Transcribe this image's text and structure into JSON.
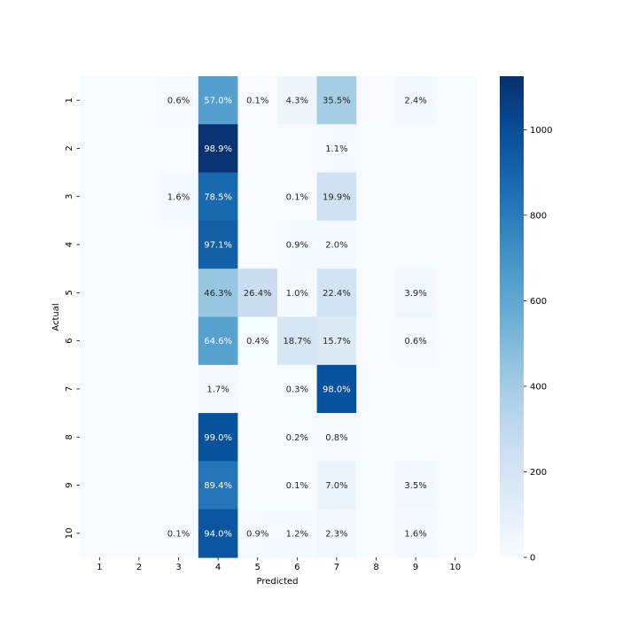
{
  "chart_data": {
    "type": "heatmap",
    "title": "",
    "xlabel": "Predicted",
    "ylabel": "Actual",
    "x_categories": [
      "1",
      "2",
      "3",
      "4",
      "5",
      "6",
      "7",
      "8",
      "9",
      "10"
    ],
    "y_categories": [
      "1",
      "2",
      "3",
      "4",
      "5",
      "6",
      "7",
      "8",
      "9",
      "10"
    ],
    "cells": [
      {
        "row": "1",
        "col": "3",
        "label": "0.6%",
        "value": 7
      },
      {
        "row": "1",
        "col": "4",
        "label": "57.0%",
        "value": 640
      },
      {
        "row": "1",
        "col": "5",
        "label": "0.1%",
        "value": 1
      },
      {
        "row": "1",
        "col": "6",
        "label": "4.3%",
        "value": 48
      },
      {
        "row": "1",
        "col": "7",
        "label": "35.5%",
        "value": 399
      },
      {
        "row": "1",
        "col": "9",
        "label": "2.4%",
        "value": 27
      },
      {
        "row": "2",
        "col": "4",
        "label": "98.9%",
        "value": 1112
      },
      {
        "row": "2",
        "col": "7",
        "label": "1.1%",
        "value": 12
      },
      {
        "row": "3",
        "col": "3",
        "label": "1.6%",
        "value": 18
      },
      {
        "row": "3",
        "col": "4",
        "label": "78.5%",
        "value": 882
      },
      {
        "row": "3",
        "col": "6",
        "label": "0.1%",
        "value": 1
      },
      {
        "row": "3",
        "col": "7",
        "label": "19.9%",
        "value": 224
      },
      {
        "row": "4",
        "col": "4",
        "label": "97.1%",
        "value": 920
      },
      {
        "row": "4",
        "col": "6",
        "label": "0.9%",
        "value": 9
      },
      {
        "row": "4",
        "col": "7",
        "label": "2.0%",
        "value": 19
      },
      {
        "row": "5",
        "col": "4",
        "label": "46.3%",
        "value": 440
      },
      {
        "row": "5",
        "col": "5",
        "label": "26.4%",
        "value": 251
      },
      {
        "row": "5",
        "col": "6",
        "label": "1.0%",
        "value": 10
      },
      {
        "row": "5",
        "col": "7",
        "label": "22.4%",
        "value": 213
      },
      {
        "row": "5",
        "col": "9",
        "label": "3.9%",
        "value": 37
      },
      {
        "row": "6",
        "col": "4",
        "label": "64.6%",
        "value": 630
      },
      {
        "row": "6",
        "col": "5",
        "label": "0.4%",
        "value": 4
      },
      {
        "row": "6",
        "col": "6",
        "label": "18.7%",
        "value": 182
      },
      {
        "row": "6",
        "col": "7",
        "label": "15.7%",
        "value": 153
      },
      {
        "row": "6",
        "col": "9",
        "label": "0.6%",
        "value": 6
      },
      {
        "row": "7",
        "col": "4",
        "label": "1.7%",
        "value": 17
      },
      {
        "row": "7",
        "col": "6",
        "label": "0.3%",
        "value": 3
      },
      {
        "row": "7",
        "col": "7",
        "label": "98.0%",
        "value": 985
      },
      {
        "row": "8",
        "col": "4",
        "label": "99.0%",
        "value": 985
      },
      {
        "row": "8",
        "col": "6",
        "label": "0.2%",
        "value": 2
      },
      {
        "row": "8",
        "col": "7",
        "label": "0.8%",
        "value": 8
      },
      {
        "row": "9",
        "col": "4",
        "label": "89.4%",
        "value": 830
      },
      {
        "row": "9",
        "col": "6",
        "label": "0.1%",
        "value": 1
      },
      {
        "row": "9",
        "col": "7",
        "label": "7.0%",
        "value": 65
      },
      {
        "row": "9",
        "col": "9",
        "label": "3.5%",
        "value": 33
      },
      {
        "row": "10",
        "col": "3",
        "label": "0.1%",
        "value": 1
      },
      {
        "row": "10",
        "col": "4",
        "label": "94.0%",
        "value": 965
      },
      {
        "row": "10",
        "col": "5",
        "label": "0.9%",
        "value": 9
      },
      {
        "row": "10",
        "col": "6",
        "label": "1.2%",
        "value": 12
      },
      {
        "row": "10",
        "col": "7",
        "label": "2.3%",
        "value": 24
      },
      {
        "row": "10",
        "col": "9",
        "label": "1.6%",
        "value": 16
      }
    ],
    "colorbar": {
      "colormap": "Blues",
      "min": 0,
      "max": 1125,
      "ticks": [
        0,
        200,
        400,
        600,
        800,
        1000
      ]
    },
    "grid": false
  }
}
